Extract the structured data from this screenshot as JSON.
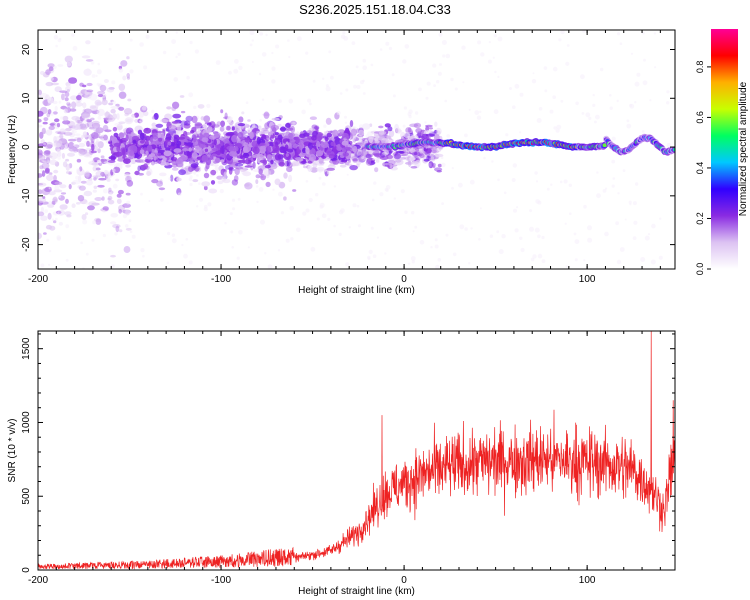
{
  "title": "S236.2025.151.18.04.C33",
  "chart_data": [
    {
      "type": "heatmap",
      "xlabel": "Height of straight line (km)",
      "ylabel": "Frequency (Hz)",
      "xlim": [
        -200,
        148
      ],
      "ylim": [
        -25,
        24
      ],
      "xticks": [
        -200,
        -100,
        0,
        100
      ],
      "yticks": [
        -20,
        -10,
        0,
        10,
        20
      ],
      "colorbar": {
        "label": "Normalized spectral amplitude",
        "range": [
          0,
          0.95
        ],
        "ticks": [
          "0.0",
          "0.2",
          "0.4",
          "0.6",
          "0.8"
        ],
        "tick_values": [
          0,
          0.2,
          0.4,
          0.6,
          0.8
        ],
        "colormap": [
          "#ffffff",
          "#dcc2f2",
          "#8a2be2",
          "#3000ff",
          "#00c8ff",
          "#00ff60",
          "#c8ff00",
          "#ffb000",
          "#ff0000",
          "#ff0096"
        ]
      },
      "signal": {
        "center_frequency_hz": 0.5,
        "strong_band_range_km": [
          -20,
          148
        ],
        "scattered_range_km": [
          -200,
          -20
        ]
      },
      "grid": false
    },
    {
      "type": "line",
      "xlabel": "Height of straight line (km)",
      "ylabel": "SNR (10 * v/v)",
      "xlim": [
        -200,
        148
      ],
      "ylim": [
        0,
        1620
      ],
      "xticks": [
        -200,
        -100,
        0,
        100
      ],
      "yticks": [
        0,
        500,
        1000,
        1500
      ],
      "color": "#ee2222",
      "envelope": {
        "x": [
          -200,
          -150,
          -100,
          -60,
          -40,
          -25,
          -10,
          10,
          25,
          50,
          80,
          110,
          125,
          135,
          142,
          148
        ],
        "y": [
          20,
          30,
          50,
          80,
          130,
          260,
          520,
          650,
          700,
          740,
          750,
          720,
          680,
          550,
          400,
          800
        ]
      },
      "peaks": [
        {
          "x": -12,
          "y": 1050
        },
        {
          "x": 135,
          "y": 1620
        },
        {
          "x": 147,
          "y": 1150
        }
      ],
      "grid": false
    }
  ]
}
